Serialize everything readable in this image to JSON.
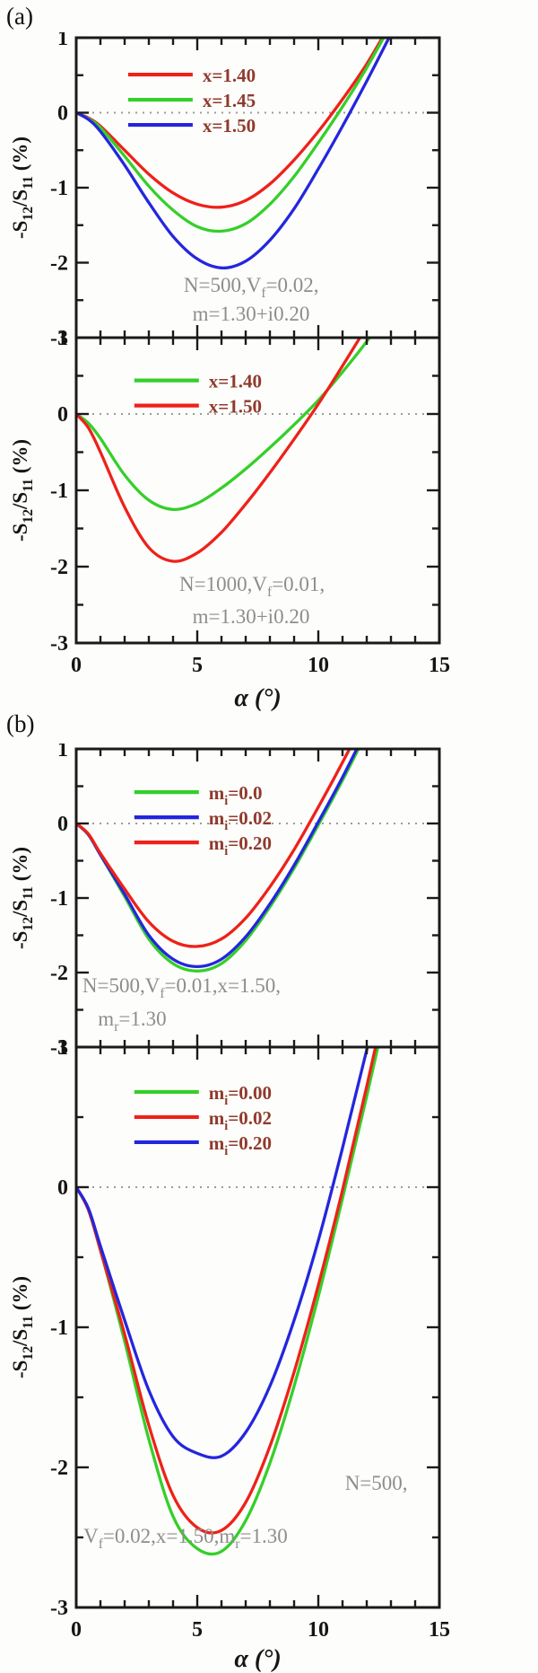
{
  "figure": {
    "panel_a_label": "(a)",
    "panel_b_label": "(b)"
  },
  "style": {
    "background": "#fdfdfb",
    "frame_color": "#1a1a1a",
    "annotation_color": "#8d8d8d",
    "legend_text_color": "#8f3a2d",
    "zero_line_color": "#9b9b9b",
    "series_red": "#ee2119",
    "series_green": "#35cf2a",
    "series_blue": "#2426dd"
  },
  "axes": {
    "xlabel": "α (°)",
    "ylabel": "-S12/S11 (%)",
    "ylabel_rich": [
      [
        "-S"
      ],
      [
        "12",
        "sub"
      ],
      [
        "/S"
      ],
      [
        "11",
        "sub"
      ],
      [
        " (%)"
      ]
    ]
  },
  "chart_data": [
    {
      "type": "line",
      "panel": "a",
      "slot": "top",
      "xlabel": "α (°)",
      "ylabel": "-S12/S11 (%)",
      "xlim": [
        0,
        15
      ],
      "ylim": [
        -3,
        1
      ],
      "xticks": [
        0,
        5,
        10,
        15
      ],
      "yticks": [
        1,
        0,
        -1,
        -2,
        -3
      ],
      "grid": false,
      "zero_line": true,
      "annotation_text": [
        "N=500,Vf=0.02,",
        "m=1.30+i0.20"
      ],
      "legend_pos": {
        "fx": 0.143,
        "fy": 0.123
      },
      "annotations": [
        {
          "rich": [
            [
              "N=500,V"
            ],
            [
              "f",
              "sub"
            ],
            [
              "=0.02,"
            ]
          ],
          "fx": 0.296,
          "fy": 0.847
        },
        {
          "rich": [
            [
              "m=1.30+i0.20"
            ]
          ],
          "fx": 0.32,
          "fy": 0.943
        }
      ],
      "series": [
        {
          "label": "x=1.40",
          "label_rich": [
            [
              "x=1.40"
            ]
          ],
          "color": "#ee2119",
          "x": [
            0,
            0.5,
            1,
            2,
            3,
            4,
            5,
            6,
            7,
            8,
            9,
            10,
            11,
            12,
            13
          ],
          "y": [
            0,
            -0.07,
            -0.18,
            -0.5,
            -0.82,
            -1.07,
            -1.22,
            -1.26,
            -1.17,
            -0.95,
            -0.63,
            -0.25,
            0.18,
            0.65,
            1.2
          ]
        },
        {
          "label": "x=1.45",
          "label_rich": [
            [
              "x=1.45"
            ]
          ],
          "color": "#35cf2a",
          "x": [
            0,
            0.5,
            1,
            2,
            3,
            4,
            5,
            6,
            7,
            8,
            9,
            10,
            11,
            12,
            13
          ],
          "y": [
            0,
            -0.08,
            -0.2,
            -0.58,
            -0.98,
            -1.3,
            -1.52,
            -1.58,
            -1.48,
            -1.22,
            -0.85,
            -0.4,
            0.08,
            0.6,
            1.18
          ]
        },
        {
          "label": "x=1.50",
          "label_rich": [
            [
              "x=1.50"
            ]
          ],
          "color": "#2426dd",
          "x": [
            0,
            0.5,
            1,
            2,
            3,
            4,
            5,
            6,
            7,
            8,
            9,
            10,
            11,
            12,
            13
          ],
          "y": [
            0,
            -0.09,
            -0.25,
            -0.7,
            -1.2,
            -1.65,
            -1.95,
            -2.07,
            -1.98,
            -1.7,
            -1.28,
            -0.75,
            -0.18,
            0.42,
            1.05
          ]
        }
      ]
    },
    {
      "type": "line",
      "panel": "a",
      "slot": "bottom",
      "xlabel": "α (°)",
      "ylabel": "-S12/S11 (%)",
      "xlim": [
        0,
        15
      ],
      "ylim": [
        -3,
        1
      ],
      "xticks": [
        0,
        5,
        10,
        15
      ],
      "yticks": [
        1,
        0,
        -1,
        -2,
        -3
      ],
      "grid": false,
      "zero_line": true,
      "annotation_text": [
        "N=1000,Vf=0.01,",
        "m=1.30+i0.20"
      ],
      "legend_pos": {
        "fx": 0.16,
        "fy": 0.14
      },
      "annotations": [
        {
          "rich": [
            [
              "N=1000,V"
            ],
            [
              "f",
              "sub"
            ],
            [
              "=0.01,"
            ]
          ],
          "fx": 0.284,
          "fy": 0.829
        },
        {
          "rich": [
            [
              "m=1.30+i0.20"
            ]
          ],
          "fx": 0.32,
          "fy": 0.935
        }
      ],
      "series": [
        {
          "label": "x=1.40",
          "label_rich": [
            [
              "x=1.40"
            ]
          ],
          "color": "#35cf2a",
          "x": [
            0,
            0.5,
            1,
            2,
            3,
            4,
            5,
            6,
            7,
            8,
            9,
            10,
            11,
            12,
            13
          ],
          "y": [
            0,
            -0.12,
            -0.32,
            -0.8,
            -1.13,
            -1.25,
            -1.17,
            -0.97,
            -0.72,
            -0.44,
            -0.14,
            0.18,
            0.55,
            0.95,
            1.4
          ]
        },
        {
          "label": "x=1.50",
          "label_rich": [
            [
              "x=1.50"
            ]
          ],
          "color": "#ee2119",
          "x": [
            0,
            0.5,
            1,
            2,
            3,
            4,
            5,
            6,
            7,
            8,
            9,
            10,
            11,
            12,
            13
          ],
          "y": [
            0,
            -0.18,
            -0.5,
            -1.22,
            -1.75,
            -1.93,
            -1.82,
            -1.55,
            -1.18,
            -0.77,
            -0.33,
            0.13,
            0.63,
            1.15,
            1.7
          ]
        }
      ]
    },
    {
      "type": "line",
      "panel": "b",
      "slot": "top",
      "xlabel": "α (°)",
      "ylabel": "-S12/S11 (%)",
      "xlim": [
        0,
        15
      ],
      "ylim": [
        -3,
        1
      ],
      "xticks": [
        0,
        5,
        10,
        15
      ],
      "yticks": [
        1,
        0,
        -1,
        -2,
        -3
      ],
      "grid": false,
      "zero_line": true,
      "annotation_text": [
        "N=500,Vf=0.01,x=1.50,",
        "mr=1.30"
      ],
      "legend_pos": {
        "fx": 0.16,
        "fy": 0.145
      },
      "annotations": [
        {
          "rich": [
            [
              "N=500,V"
            ],
            [
              "f",
              "sub"
            ],
            [
              "=0.01,x=1.50,"
            ]
          ],
          "fx": 0.017,
          "fy": 0.816
        },
        {
          "rich": [
            [
              "m"
            ],
            [
              "r",
              "sub"
            ],
            [
              "=1.30"
            ]
          ],
          "fx": 0.06,
          "fy": 0.928
        }
      ],
      "series": [
        {
          "label": "mi=0.0",
          "label_rich": [
            [
              "m"
            ],
            [
              "i",
              "sub"
            ],
            [
              "=0.0"
            ]
          ],
          "color": "#35cf2a",
          "x": [
            0,
            0.5,
            1,
            2,
            3,
            4,
            5,
            6,
            7,
            8,
            9,
            10,
            11,
            12
          ],
          "y": [
            0,
            -0.15,
            -0.42,
            -0.98,
            -1.55,
            -1.88,
            -1.98,
            -1.88,
            -1.57,
            -1.12,
            -0.6,
            -0.02,
            0.58,
            1.22
          ]
        },
        {
          "label": "mi=0.02",
          "label_rich": [
            [
              "m"
            ],
            [
              "i",
              "sub"
            ],
            [
              "=0.02"
            ]
          ],
          "color": "#2426dd",
          "x": [
            0,
            0.5,
            1,
            2,
            3,
            4,
            5,
            6,
            7,
            8,
            9,
            10,
            11,
            12
          ],
          "y": [
            0,
            -0.15,
            -0.42,
            -0.95,
            -1.5,
            -1.82,
            -1.92,
            -1.82,
            -1.52,
            -1.08,
            -0.56,
            0.02,
            0.62,
            1.27
          ]
        },
        {
          "label": "mi=0.20",
          "label_rich": [
            [
              "m"
            ],
            [
              "i",
              "sub"
            ],
            [
              "=0.20"
            ]
          ],
          "color": "#ee2119",
          "x": [
            0,
            0.5,
            1,
            2,
            3,
            4,
            5,
            6,
            7,
            8,
            9,
            10,
            11,
            12
          ],
          "y": [
            0,
            -0.14,
            -0.4,
            -0.88,
            -1.32,
            -1.58,
            -1.65,
            -1.55,
            -1.27,
            -0.85,
            -0.35,
            0.22,
            0.82,
            1.45
          ]
        }
      ]
    },
    {
      "type": "line",
      "panel": "b",
      "slot": "bottom",
      "xlabel": "α (°)",
      "ylabel": "-S12/S11 (%)",
      "xlim": [
        0,
        15
      ],
      "ylim": [
        -3,
        1
      ],
      "xticks": [
        0,
        5,
        10,
        15
      ],
      "yticks": [
        1,
        0,
        -1,
        -2,
        -3
      ],
      "grid": false,
      "zero_line": true,
      "annotation_text": [
        "N=500,",
        "Vf=0.02,x=1.50,mr=1.30"
      ],
      "legend_pos": {
        "fx": 0.16,
        "fy": 0.08
      },
      "annotations": [
        {
          "rich": [
            [
              "N=500,"
            ]
          ],
          "fx": 0.74,
          "fy": 0.79
        },
        {
          "rich": [
            [
              "V"
            ],
            [
              "f",
              "sub"
            ],
            [
              "=0.02,x=1.50,m"
            ],
            [
              "r",
              "sub"
            ],
            [
              "=1.30"
            ]
          ],
          "fx": 0.02,
          "fy": 0.885
        }
      ],
      "series": [
        {
          "label": "mi=0.00",
          "label_rich": [
            [
              "m"
            ],
            [
              "i",
              "sub"
            ],
            [
              "=0.00"
            ]
          ],
          "color": "#35cf2a",
          "x": [
            0,
            0.5,
            1,
            2,
            3,
            4,
            5,
            6,
            7,
            8,
            9,
            10,
            11,
            12,
            13
          ],
          "y": [
            0,
            -0.16,
            -0.45,
            -1.1,
            -1.8,
            -2.35,
            -2.58,
            -2.6,
            -2.38,
            -1.97,
            -1.42,
            -0.78,
            -0.08,
            0.65,
            1.42
          ]
        },
        {
          "label": "mi=0.02",
          "label_rich": [
            [
              "m"
            ],
            [
              "i",
              "sub"
            ],
            [
              "=0.02"
            ]
          ],
          "color": "#ee2119",
          "x": [
            0,
            0.5,
            1,
            2,
            3,
            4,
            5,
            6,
            7,
            8,
            9,
            10,
            11,
            12,
            13
          ],
          "y": [
            0,
            -0.16,
            -0.45,
            -1.05,
            -1.7,
            -2.2,
            -2.43,
            -2.45,
            -2.25,
            -1.85,
            -1.32,
            -0.7,
            -0.02,
            0.72,
            1.5
          ]
        },
        {
          "label": "mi=0.20",
          "label_rich": [
            [
              "m"
            ],
            [
              "i",
              "sub"
            ],
            [
              "=0.20"
            ]
          ],
          "color": "#2426dd",
          "x": [
            0,
            0.5,
            1,
            2,
            3,
            4,
            5,
            6,
            7,
            8,
            9,
            10,
            11,
            12,
            13
          ],
          "y": [
            0,
            -0.15,
            -0.42,
            -0.95,
            -1.45,
            -1.78,
            -1.9,
            -1.92,
            -1.75,
            -1.42,
            -0.95,
            -0.38,
            0.28,
            0.98,
            1.72
          ]
        }
      ]
    }
  ]
}
